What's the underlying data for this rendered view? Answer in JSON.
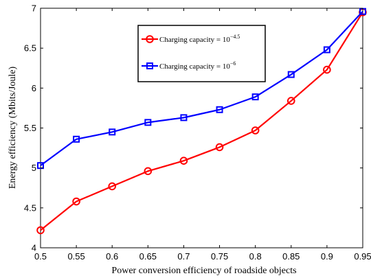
{
  "chart_data": {
    "type": "line",
    "x": [
      0.5,
      0.55,
      0.6,
      0.65,
      0.7,
      0.75,
      0.8,
      0.85,
      0.9,
      0.95
    ],
    "x_ticks": [
      "0.5",
      "0.55",
      "0.6",
      "0.65",
      "0.7",
      "0.75",
      "0.8",
      "0.85",
      "0.9",
      "0.95"
    ],
    "y_ticks": [
      "4",
      "4.5",
      "5",
      "5.5",
      "6",
      "6.5",
      "7"
    ],
    "xlim": [
      0.5,
      0.95
    ],
    "ylim": [
      4,
      7
    ],
    "xlabel": "Power conversion efficiency of roadside objects",
    "ylabel": "Energy efficiency (Mbits/Joule)",
    "grid": false,
    "legend_position": "top-center",
    "series": [
      {
        "name": "Charging capacity = 10",
        "name_exponent": "−4.5",
        "color": "#ff0000",
        "marker": "circle",
        "values": [
          4.22,
          4.58,
          4.77,
          4.96,
          5.09,
          5.26,
          5.47,
          5.84,
          6.23,
          6.95
        ]
      },
      {
        "name": "Charging capacity = 10",
        "name_exponent": "−6",
        "color": "#0000ff",
        "marker": "square",
        "values": [
          5.03,
          5.36,
          5.45,
          5.57,
          5.63,
          5.73,
          5.89,
          6.17,
          6.48,
          6.96
        ]
      }
    ]
  }
}
